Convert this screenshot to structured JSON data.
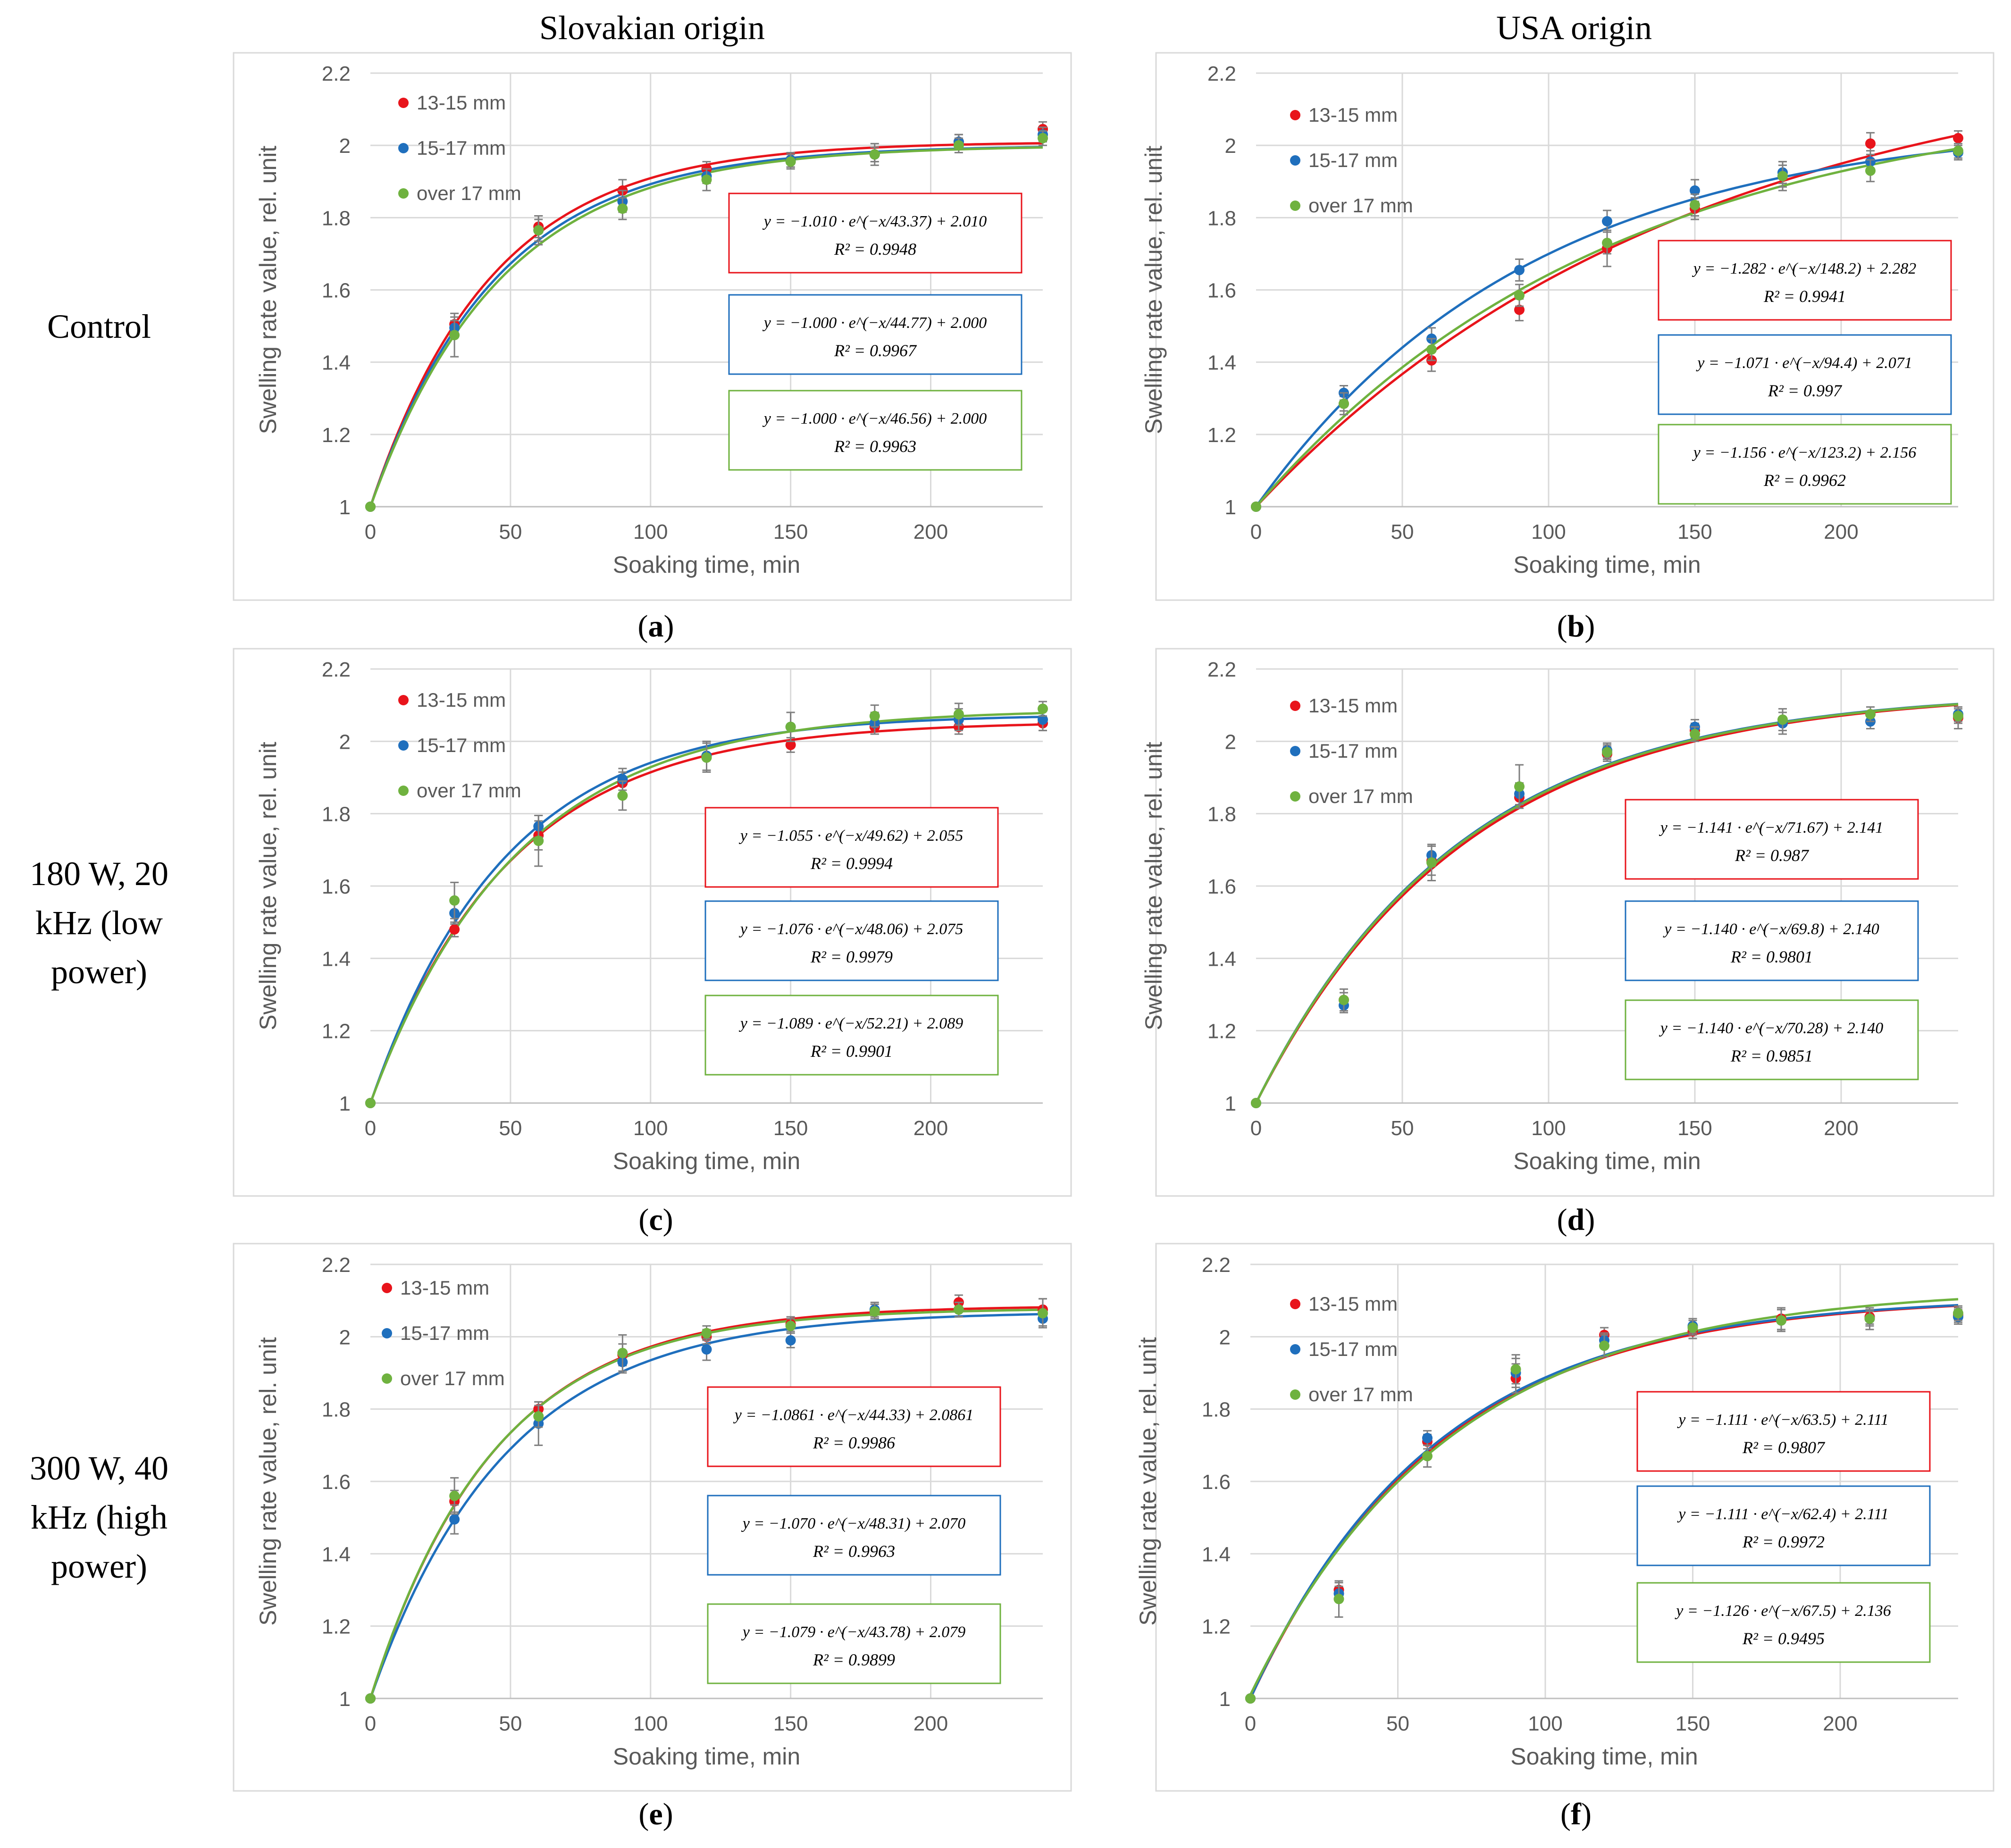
{
  "column_headers": [
    "Slovakian origin",
    "USA origin"
  ],
  "row_labels": [
    "Control",
    "180 W, 20\nkHz (low\npower)",
    "300 W, 40\nkHz (high\npower)"
  ],
  "colors": {
    "red": "#e8141b",
    "blue": "#1f6fbd",
    "green": "#6fb23f",
    "error": "#7f7f7f",
    "grid": "#d9d9d9",
    "axis_text": "#595959"
  },
  "chart_data": [
    {
      "panel": "a",
      "type": "scatter",
      "xlabel": "Soaking time, min",
      "ylabel": "Swelling rate value, rel. unit",
      "xlim": [
        0,
        240
      ],
      "ylim": [
        1,
        2.2
      ],
      "xticks": [
        0,
        50,
        100,
        150,
        200
      ],
      "yticks": [
        1,
        1.2,
        1.4,
        1.6,
        1.8,
        2,
        2.2
      ],
      "x": [
        0,
        30,
        60,
        90,
        120,
        150,
        180,
        210,
        240
      ],
      "legend_position": "top-left",
      "series": [
        {
          "name": "13-15 mm",
          "color": "red",
          "values": [
            1,
            1.505,
            1.775,
            1.875,
            1.935,
            1.96,
            1.975,
            2.01,
            2.045
          ],
          "error": [
            0,
            0.02,
            0.03,
            0.03,
            0.02,
            0.02,
            0.02,
            0.02,
            0.02
          ],
          "fit": {
            "a": 1.01,
            "tau": 43.37,
            "c": 2.01
          },
          "equation": "y = −1.010 · e^(−x/43.37) + 2.010",
          "r2": "R² = 0.9948"
        },
        {
          "name": "15-17 mm",
          "color": "blue",
          "values": [
            1,
            1.495,
            1.765,
            1.845,
            1.915,
            1.96,
            1.975,
            2.01,
            2.03
          ],
          "error": [
            0,
            0.02,
            0.03,
            0.03,
            0.02,
            0.02,
            0.02,
            0.02,
            0.02
          ],
          "fit": {
            "a": 1.0,
            "tau": 44.77,
            "c": 2.0
          },
          "equation": "y = −1.000 · e^(−x/44.77) + 2.000",
          "r2": "R² = 0.9967"
        },
        {
          "name": "over 17 mm",
          "color": "green",
          "values": [
            1,
            1.475,
            1.765,
            1.825,
            1.905,
            1.955,
            1.975,
            2.0,
            2.02
          ],
          "error": [
            0,
            0.06,
            0.04,
            0.03,
            0.03,
            0.02,
            0.03,
            0.02,
            0.02
          ],
          "fit": {
            "a": 1.0,
            "tau": 46.56,
            "c": 2.0
          },
          "equation": "y = −1.000 · e^(−x/46.56) + 2.000",
          "r2": "R² = 0.9963"
        }
      ]
    },
    {
      "panel": "b",
      "type": "scatter",
      "xlabel": "Soaking time, min",
      "ylabel": "Swelling rate value, rel. unit",
      "xlim": [
        0,
        240
      ],
      "ylim": [
        1,
        2.2
      ],
      "xticks": [
        0,
        50,
        100,
        150,
        200
      ],
      "yticks": [
        1,
        1.2,
        1.4,
        1.6,
        1.8,
        2,
        2.2
      ],
      "x": [
        0,
        30,
        60,
        90,
        120,
        150,
        180,
        210,
        240
      ],
      "legend_position": "top-left",
      "series": [
        {
          "name": "13-15 mm",
          "color": "red",
          "values": [
            1,
            1.285,
            1.405,
            1.545,
            1.715,
            1.825,
            1.915,
            2.005,
            2.02
          ],
          "error": [
            0,
            0.02,
            0.03,
            0.03,
            0.05,
            0.03,
            0.03,
            0.03,
            0.02
          ],
          "fit": {
            "a": 1.282,
            "tau": 148.2,
            "c": 2.282
          },
          "equation": "y = −1.282 · e^(−x/148.2) + 2.282",
          "r2": "R² = 0.9941"
        },
        {
          "name": "15-17 mm",
          "color": "blue",
          "values": [
            1,
            1.315,
            1.465,
            1.655,
            1.79,
            1.875,
            1.925,
            1.955,
            1.98
          ],
          "error": [
            0,
            0.02,
            0.03,
            0.03,
            0.03,
            0.03,
            0.03,
            0.03,
            0.02
          ],
          "fit": {
            "a": 1.071,
            "tau": 94.4,
            "c": 2.071
          },
          "equation": "y = −1.071 · e^(−x/94.4) + 2.071",
          "r2": "R² = 0.997"
        },
        {
          "name": "over 17 mm",
          "color": "green",
          "values": [
            1,
            1.285,
            1.435,
            1.585,
            1.73,
            1.835,
            1.915,
            1.93,
            1.985
          ],
          "error": [
            0,
            0.03,
            0.03,
            0.03,
            0.03,
            0.03,
            0.04,
            0.03,
            0.02
          ],
          "fit": {
            "a": 1.156,
            "tau": 123.2,
            "c": 2.156
          },
          "equation": "y = −1.156 · e^(−x/123.2) + 2.156",
          "r2": "R² = 0.9962"
        }
      ]
    },
    {
      "panel": "c",
      "type": "scatter",
      "xlabel": "Soaking time, min",
      "ylabel": "Swelling rate value, rel. unit",
      "xlim": [
        0,
        240
      ],
      "ylim": [
        1,
        2.2
      ],
      "xticks": [
        0,
        50,
        100,
        150,
        200
      ],
      "yticks": [
        1,
        1.2,
        1.4,
        1.6,
        1.8,
        2,
        2.2
      ],
      "x": [
        0,
        30,
        60,
        90,
        120,
        150,
        180,
        210,
        240
      ],
      "legend_position": "top-left",
      "series": [
        {
          "name": "13-15 mm",
          "color": "red",
          "values": [
            1,
            1.48,
            1.74,
            1.885,
            1.96,
            1.99,
            2.04,
            2.04,
            2.05
          ],
          "error": [
            0,
            0.02,
            0.04,
            0.03,
            0.04,
            0.02,
            0.02,
            0.02,
            0.02
          ],
          "fit": {
            "a": 1.055,
            "tau": 49.62,
            "c": 2.055
          },
          "equation": "y = −1.055 · e^(−x/49.62) + 2.055",
          "r2": "R² = 0.9994"
        },
        {
          "name": "15-17 mm",
          "color": "blue",
          "values": [
            1,
            1.525,
            1.765,
            1.895,
            1.96,
            2.04,
            2.05,
            2.06,
            2.06
          ],
          "error": [
            0,
            0.03,
            0.03,
            0.03,
            0.04,
            0.04,
            0.03,
            0.03,
            0.03
          ],
          "fit": {
            "a": 1.076,
            "tau": 48.06,
            "c": 2.075
          },
          "equation": "y = −1.076 · e^(−x/48.06) + 2.075",
          "r2": "R² = 0.9979"
        },
        {
          "name": "over 17 mm",
          "color": "green",
          "values": [
            1,
            1.56,
            1.725,
            1.85,
            1.955,
            2.04,
            2.07,
            2.075,
            2.09
          ],
          "error": [
            0,
            0.05,
            0.07,
            0.04,
            0.04,
            0.04,
            0.03,
            0.03,
            0.02
          ],
          "fit": {
            "a": 1.089,
            "tau": 52.21,
            "c": 2.089
          },
          "equation": "y = −1.089 · e^(−x/52.21) + 2.089",
          "r2": "R² = 0.9901"
        }
      ]
    },
    {
      "panel": "d",
      "type": "scatter",
      "xlabel": "Soaking time, min",
      "ylabel": "Swelling rate value, rel. unit",
      "xlim": [
        0,
        240
      ],
      "ylim": [
        1,
        2.2
      ],
      "xticks": [
        0,
        50,
        100,
        150,
        200
      ],
      "yticks": [
        1,
        1.2,
        1.4,
        1.6,
        1.8,
        2,
        2.2
      ],
      "x": [
        0,
        30,
        60,
        90,
        120,
        150,
        180,
        210,
        240
      ],
      "legend_position": "top-left",
      "series": [
        {
          "name": "13-15 mm",
          "color": "red",
          "values": [
            1,
            1.285,
            1.67,
            1.845,
            1.965,
            2.03,
            2.05,
            2.075,
            2.065
          ],
          "error": [
            0,
            0.02,
            0.04,
            0.03,
            0.02,
            0.02,
            0.03,
            0.02,
            0.03
          ],
          "fit": {
            "a": 1.141,
            "tau": 71.67,
            "c": 2.141
          },
          "equation": "y = −1.141 · e^(−x/71.67) + 2.141",
          "r2": "R² = 0.987"
        },
        {
          "name": "15-17 mm",
          "color": "blue",
          "values": [
            1,
            1.27,
            1.685,
            1.855,
            1.975,
            2.04,
            2.05,
            2.055,
            2.075
          ],
          "error": [
            0,
            0.02,
            0.03,
            0.03,
            0.02,
            0.02,
            0.03,
            0.02,
            0.02
          ],
          "fit": {
            "a": 1.14,
            "tau": 69.8,
            "c": 2.14
          },
          "equation": "y = −1.140 · e^(−x/69.8) + 2.140",
          "r2": "R² = 0.9801"
        },
        {
          "name": "over 17 mm",
          "color": "green",
          "values": [
            1,
            1.285,
            1.665,
            1.875,
            1.97,
            2.02,
            2.06,
            2.075,
            2.07
          ],
          "error": [
            0,
            0.03,
            0.05,
            0.06,
            0.02,
            0.02,
            0.03,
            0.02,
            0.02
          ],
          "fit": {
            "a": 1.14,
            "tau": 70.28,
            "c": 2.14
          },
          "equation": "y = −1.140 · e^(−x/70.28) + 2.140",
          "r2": "R² = 0.9851"
        }
      ]
    },
    {
      "panel": "e",
      "type": "scatter",
      "xlabel": "Soaking time, min",
      "ylabel": "Swelling rate value, rel. unit",
      "xlim": [
        0,
        240
      ],
      "ylim": [
        1,
        2.2
      ],
      "xticks": [
        0,
        50,
        100,
        150,
        200
      ],
      "yticks": [
        1,
        1.2,
        1.4,
        1.6,
        1.8,
        2,
        2.2
      ],
      "x": [
        0,
        30,
        60,
        90,
        120,
        150,
        180,
        210,
        240
      ],
      "legend_position": "top-left",
      "series": [
        {
          "name": "13-15 mm",
          "color": "red",
          "values": [
            1,
            1.545,
            1.8,
            1.95,
            2.0,
            2.035,
            2.07,
            2.095,
            2.075
          ],
          "error": [
            0,
            0.03,
            0.02,
            0.03,
            0.02,
            0.02,
            0.02,
            0.02,
            0.03
          ],
          "fit": {
            "a": 1.0861,
            "tau": 44.33,
            "c": 2.0861
          },
          "equation": "y = −1.0861 · e^(−x/44.33) + 2.0861",
          "r2": "R² = 0.9986"
        },
        {
          "name": "15-17 mm",
          "color": "blue",
          "values": [
            1,
            1.495,
            1.76,
            1.93,
            1.965,
            1.99,
            2.075,
            2.075,
            2.05
          ],
          "error": [
            0,
            0.04,
            0.06,
            0.03,
            0.03,
            0.02,
            0.02,
            0.02,
            0.02
          ],
          "fit": {
            "a": 1.07,
            "tau": 48.31,
            "c": 2.07
          },
          "equation": "y = −1.070 · e^(−x/48.31) + 2.070",
          "r2": "R² = 0.9963"
        },
        {
          "name": "over 17 mm",
          "color": "green",
          "values": [
            1,
            1.56,
            1.78,
            1.955,
            2.01,
            2.03,
            2.07,
            2.075,
            2.065
          ],
          "error": [
            0,
            0.05,
            0.03,
            0.05,
            0.02,
            0.02,
            0.02,
            0.02,
            0.04
          ],
          "fit": {
            "a": 1.079,
            "tau": 43.78,
            "c": 2.079
          },
          "equation": "y = −1.079 · e^(−x/43.78) + 2.079",
          "r2": "R² = 0.9899"
        }
      ]
    },
    {
      "panel": "f",
      "type": "scatter",
      "xlabel": "Soaking time, min",
      "ylabel": "Swelling rate value, rel. unit",
      "xlim": [
        0,
        240
      ],
      "ylim": [
        1,
        2.2
      ],
      "xticks": [
        0,
        50,
        100,
        150,
        200
      ],
      "yticks": [
        1,
        1.2,
        1.4,
        1.6,
        1.8,
        2,
        2.2
      ],
      "x": [
        0,
        30,
        60,
        90,
        120,
        150,
        180,
        210,
        240
      ],
      "legend_position": "top-left",
      "series": [
        {
          "name": "13-15 mm",
          "color": "red",
          "values": [
            1,
            1.3,
            1.71,
            1.885,
            2.005,
            2.015,
            2.05,
            2.055,
            2.06
          ],
          "error": [
            0,
            0.02,
            0.02,
            0.04,
            0.02,
            0.02,
            0.03,
            0.02,
            0.02
          ],
          "fit": {
            "a": 1.111,
            "tau": 63.5,
            "c": 2.111
          },
          "equation": "y = −1.111 · e^(−x/63.5) + 2.111",
          "r2": "R² = 0.9807"
        },
        {
          "name": "15-17 mm",
          "color": "blue",
          "values": [
            1,
            1.29,
            1.72,
            1.9,
            1.99,
            2.03,
            2.045,
            2.05,
            2.055
          ],
          "error": [
            0,
            0.02,
            0.02,
            0.04,
            0.02,
            0.02,
            0.03,
            0.02,
            0.02
          ],
          "fit": {
            "a": 1.111,
            "tau": 62.4,
            "c": 2.111
          },
          "equation": "y = −1.111 · e^(−x/62.4) + 2.111",
          "r2": "R² = 0.9972"
        },
        {
          "name": "over 17 mm",
          "color": "green",
          "values": [
            1,
            1.275,
            1.67,
            1.91,
            1.975,
            2.025,
            2.045,
            2.05,
            2.065
          ],
          "error": [
            0,
            0.05,
            0.03,
            0.04,
            0.03,
            0.02,
            0.03,
            0.03,
            0.02
          ],
          "fit": {
            "a": 1.126,
            "tau": 67.5,
            "c": 2.136
          },
          "equation": "y = −1.126 · e^(−x/67.5) + 2.136",
          "r2": "R² = 0.9495"
        }
      ]
    }
  ]
}
